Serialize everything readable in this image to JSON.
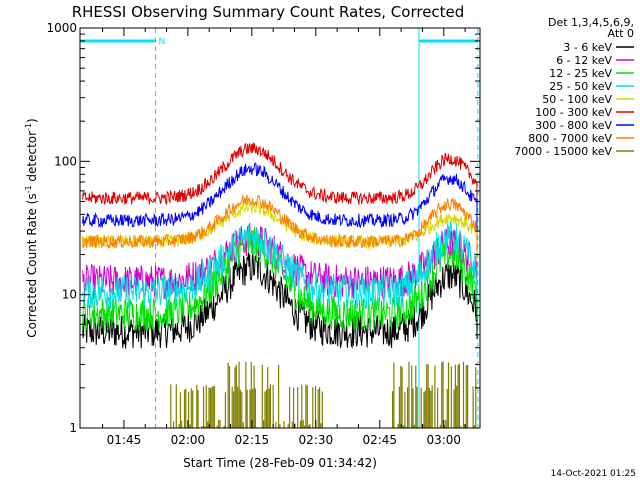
{
  "chart_data": {
    "type": "line",
    "title": "RHESSI Observing Summary Count Rates, Corrected",
    "xlabel": "Start Time (28-Feb-09 01:34:42)",
    "ylabel_main": "Corrected Count Rate (s",
    "ylabel_sup1": "-1",
    "ylabel_mid": " detector",
    "ylabel_sup2": "-1",
    "ylabel_end": ")",
    "yscale": "log",
    "ylim": [
      1,
      1000
    ],
    "xlim_minutes": [
      94.7,
      188.5
    ],
    "x_ticks": [
      {
        "minute": 105,
        "label": "01:45"
      },
      {
        "minute": 120,
        "label": "02:00"
      },
      {
        "minute": 135,
        "label": "02:15"
      },
      {
        "minute": 150,
        "label": "02:30"
      },
      {
        "minute": 165,
        "label": "02:45"
      },
      {
        "minute": 180,
        "label": "03:00"
      }
    ],
    "y_ticks": [
      {
        "value": 1,
        "label": "1"
      },
      {
        "value": 10,
        "label": "10"
      },
      {
        "value": 100,
        "label": "100"
      },
      {
        "value": 1000,
        "label": "1000"
      }
    ],
    "legend_header": [
      "Det 1,3,4,5,6,9,",
      "Att 0"
    ],
    "night_intervals_minutes": [
      [
        94.7,
        112.4
      ],
      [
        174.2,
        188.0
      ]
    ],
    "day_boundaries_minutes": [
      112.4,
      174.2
    ],
    "eclipse_edges_minutes": [
      94.7,
      174.2
    ],
    "bar_label": "N",
    "series": [
      {
        "name": "3 - 6 keV",
        "color": "#000000",
        "base": 5.3,
        "peak": 16,
        "peak2": 14
      },
      {
        "name": "6 - 12 keV",
        "color": "#d000d0",
        "base": 12.5,
        "peak": 26,
        "peak2": 24
      },
      {
        "name": "12 - 25 keV",
        "color": "#00e000",
        "base": 7.2,
        "peak": 24,
        "peak2": 20
      },
      {
        "name": "25 - 50 keV",
        "color": "#00e0e0",
        "base": 10.5,
        "peak": 27,
        "peak2": 27
      },
      {
        "name": "50 - 100 keV",
        "color": "#d8d800",
        "base": 25,
        "peak": 45,
        "peak2": 38
      },
      {
        "name": "100 - 300 keV",
        "color": "#e00000",
        "base": 53,
        "peak": 125,
        "peak2": 105
      },
      {
        "name": "300 - 800 keV",
        "color": "#0000ff",
        "base": 36,
        "peak": 88,
        "peak2": 75
      },
      {
        "name": "800 - 7000 keV",
        "color": "#ff8000",
        "base": 25,
        "peak": 52,
        "peak2": 48
      },
      {
        "name": "7000 - 15000 keV",
        "color": "#808000",
        "base": 1,
        "peak": 3.2,
        "peak2": 2.8
      }
    ],
    "timestamp": "14-Oct-2021 01:25"
  }
}
